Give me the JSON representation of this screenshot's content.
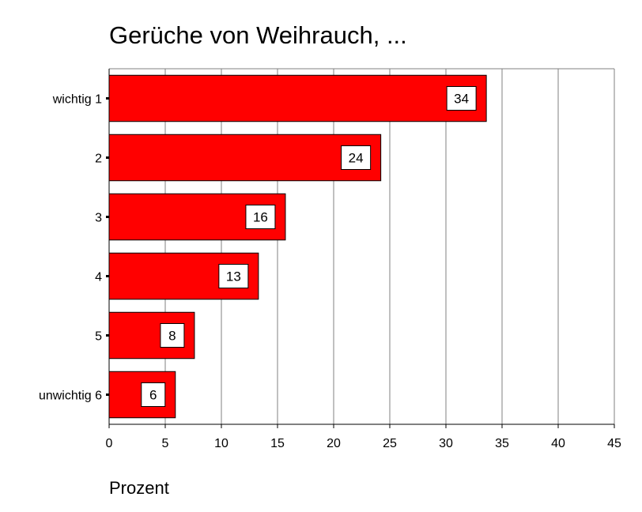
{
  "chart_data": {
    "type": "bar",
    "orientation": "horizontal",
    "title": "Gerüche von Weihrauch, ...",
    "xlabel": "Prozent",
    "ylabel": "",
    "categories": [
      "wichtig 1",
      "2",
      "3",
      "4",
      "5",
      "unwichtig 6"
    ],
    "values": [
      33.6,
      24.2,
      15.7,
      13.3,
      7.6,
      5.9
    ],
    "data_labels": [
      "34",
      "24",
      "16",
      "13",
      "8",
      "6"
    ],
    "xlim": [
      0,
      45
    ],
    "xticks": [
      "0",
      "5",
      "10",
      "15",
      "20",
      "25",
      "30",
      "35",
      "40",
      "45"
    ],
    "grid": true,
    "legend": "none",
    "colors": {
      "bar": "#ff0000",
      "bar_border": "#000000",
      "grid": "#808080",
      "label_box": "#ffffff"
    }
  }
}
